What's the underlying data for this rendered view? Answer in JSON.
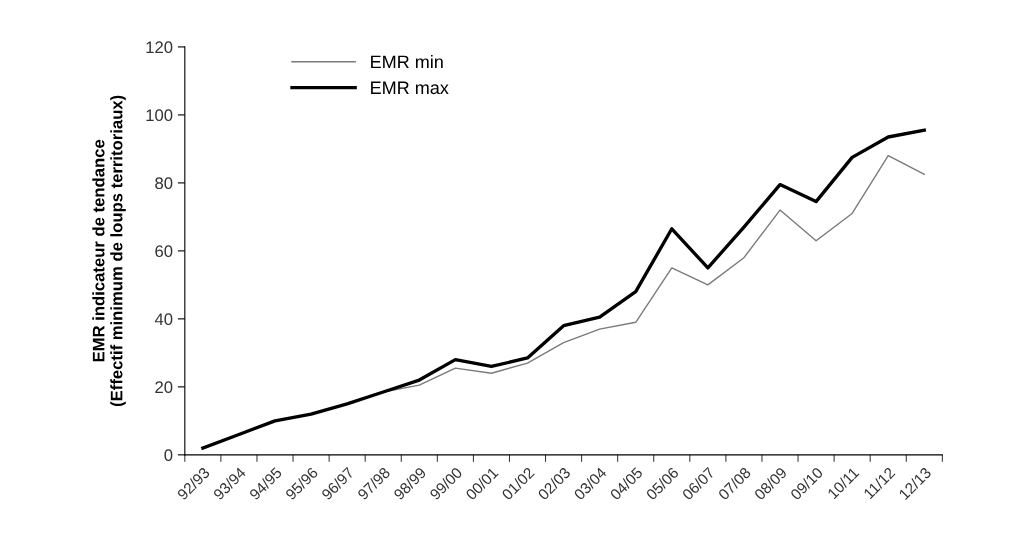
{
  "chart_data": {
    "type": "line",
    "ylabel": "EMR indicateur de tendance\n(Effectif minimum de loups territoriaux)",
    "categories": [
      "92/93",
      "93/94",
      "94/95",
      "95/96",
      "96/97",
      "97/98",
      "98/99",
      "99/00",
      "00/01",
      "01/02",
      "02/03",
      "03/04",
      "04/05",
      "05/06",
      "06/07",
      "07/08",
      "08/09",
      "09/10",
      "10/11",
      "11/12",
      "12/13"
    ],
    "series": [
      {
        "name": "EMR min",
        "color": "#7a7a7a",
        "values": [
          2,
          6,
          10,
          12,
          15,
          18.5,
          20.5,
          25.5,
          24,
          27,
          33,
          37,
          39,
          55,
          50,
          58,
          72,
          63,
          71,
          88,
          82.5
        ]
      },
      {
        "name": "EMR max",
        "color": "#000000",
        "values": [
          2,
          6,
          10,
          12,
          15,
          18.5,
          22,
          28,
          26,
          28.5,
          38,
          40.5,
          48,
          66.5,
          55,
          67,
          79.5,
          74.5,
          87.5,
          93.5,
          95.5
        ]
      }
    ],
    "ylim": [
      0,
      120
    ],
    "yticks": [
      0,
      20,
      40,
      60,
      80,
      100,
      120
    ],
    "legend": "top left",
    "grid": false,
    "marker": "none",
    "line_style": "solid"
  }
}
